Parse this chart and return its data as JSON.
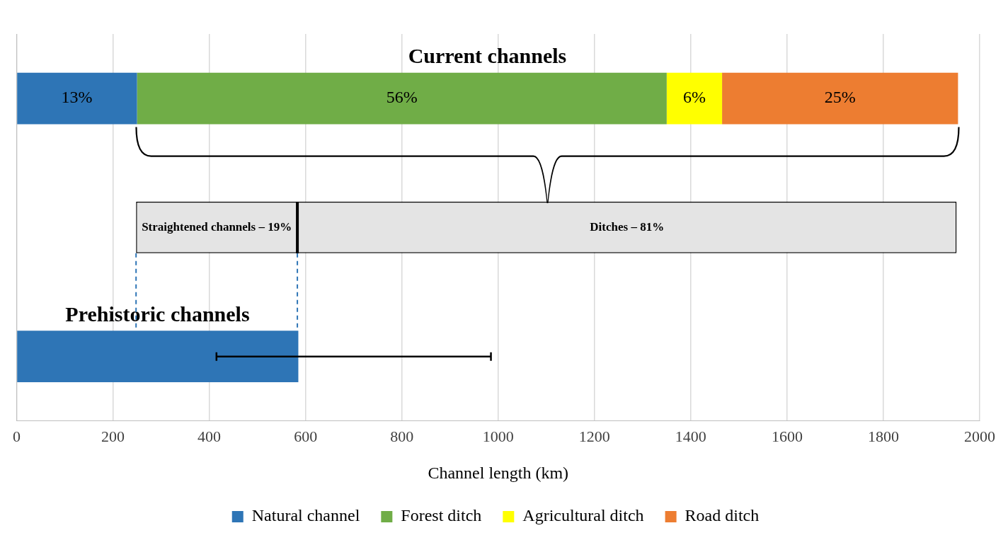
{
  "chart_data": {
    "type": "bar",
    "orientation": "horizontal",
    "stacked": true,
    "categories": [
      "Current channels",
      null,
      "Prehistoric channels"
    ],
    "series": [
      {
        "name": "Natural channel",
        "color": "#2e75b6",
        "values": [
          250,
          null,
          585
        ],
        "errors": [
          null,
          null,
          [
            415,
            985
          ]
        ]
      },
      {
        "name": "Forest ditch",
        "color": "#70ad47",
        "values": [
          1100,
          null,
          null
        ]
      },
      {
        "name": "Agricultural ditch",
        "color": "#ffff00",
        "values": [
          115,
          null,
          null
        ]
      },
      {
        "name": "Road ditch",
        "color": "#ed7d31",
        "values": [
          490,
          null,
          null
        ]
      },
      {
        "color": "#e4e4e4",
        "values": [
          null,
          335,
          null
        ],
        "base": [
          null,
          248,
          null
        ]
      },
      {
        "color": "#e4e4e4",
        "values": [
          null,
          1369,
          null
        ],
        "base": [
          null,
          583,
          null
        ]
      }
    ],
    "annotations": [
      "13%",
      "56%",
      "6%",
      "25%",
      "Straightened channels – 19%",
      "Ditches – 81%"
    ],
    "xlabel": "Channel length (km)",
    "xlim": [
      0,
      2000
    ],
    "xticks": [
      0,
      200,
      400,
      600,
      800,
      1000,
      1200,
      1400,
      1600,
      1800,
      2000
    ],
    "grid": "x",
    "legend": "bottom",
    "tick_labels": "x"
  }
}
